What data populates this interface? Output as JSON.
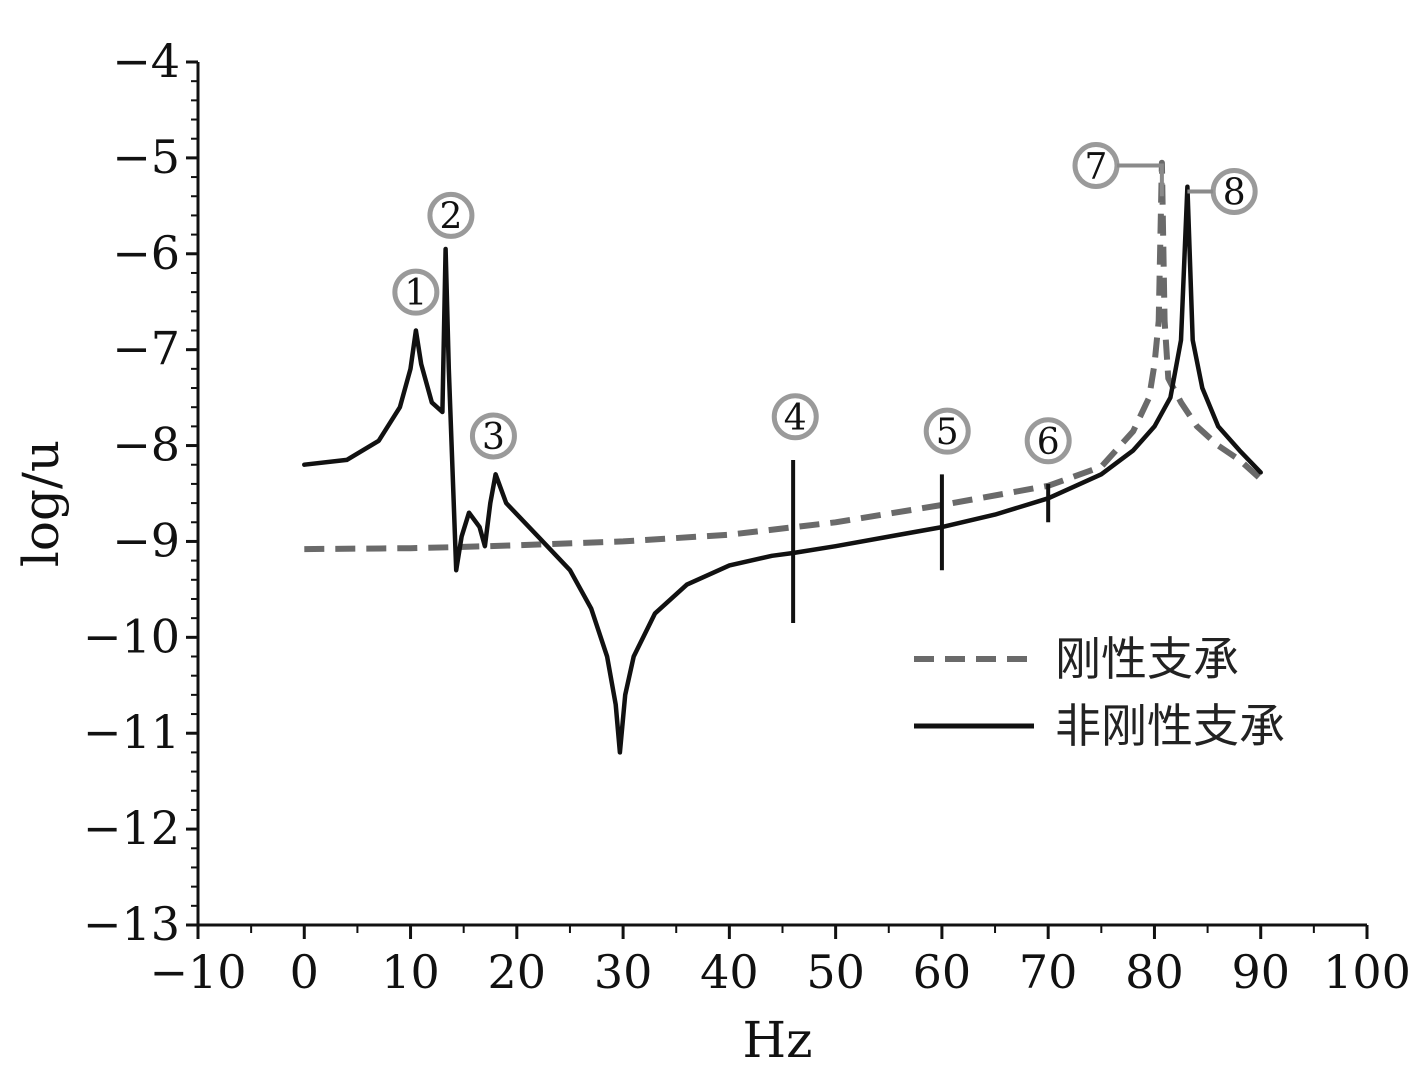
{
  "chart_data": {
    "type": "line",
    "title": "",
    "xlabel": "Hz",
    "ylabel": "log/u",
    "xlim": [
      -10,
      100
    ],
    "ylim": [
      -13,
      -4
    ],
    "xticks": [
      -10,
      0,
      10,
      20,
      30,
      40,
      50,
      60,
      70,
      80,
      90,
      100
    ],
    "xtick_labels": [
      "−10",
      "0",
      "10",
      "20",
      "30",
      "40",
      "50",
      "60",
      "70",
      "80",
      "90",
      "100"
    ],
    "yticks": [
      -4,
      -5,
      -6,
      -7,
      -8,
      -9,
      -10,
      -11,
      -12,
      -13
    ],
    "ytick_labels": [
      "−4",
      "−5",
      "−6",
      "−7",
      "−8",
      "−9",
      "−10",
      "−11",
      "−12",
      "−13"
    ],
    "grid": false,
    "legend_position": "lower-right",
    "series": [
      {
        "name": "刚性支承",
        "style": "dashed",
        "color": "#6a6a6a",
        "points": [
          [
            0,
            -9.08
          ],
          [
            10,
            -9.07
          ],
          [
            14,
            -9.06
          ],
          [
            20,
            -9.04
          ],
          [
            30,
            -9.0
          ],
          [
            40,
            -8.93
          ],
          [
            50,
            -8.8
          ],
          [
            60,
            -8.62
          ],
          [
            70,
            -8.42
          ],
          [
            75,
            -8.22
          ],
          [
            78,
            -7.85
          ],
          [
            79.5,
            -7.5
          ],
          [
            80,
            -7.15
          ],
          [
            80.4,
            -6.7
          ],
          [
            80.7,
            -5.05
          ],
          [
            80.95,
            -6.7
          ],
          [
            81.3,
            -7.3
          ],
          [
            82.5,
            -7.55
          ],
          [
            84,
            -7.8
          ],
          [
            86,
            -8.0
          ],
          [
            88,
            -8.15
          ],
          [
            90,
            -8.35
          ]
        ]
      },
      {
        "name": "非刚性支承",
        "style": "solid",
        "color": "#111111",
        "points": [
          [
            0,
            -8.2
          ],
          [
            4,
            -8.15
          ],
          [
            7,
            -7.95
          ],
          [
            9,
            -7.6
          ],
          [
            10,
            -7.2
          ],
          [
            10.5,
            -6.8
          ],
          [
            11,
            -7.15
          ],
          [
            12,
            -7.55
          ],
          [
            13,
            -7.65
          ],
          [
            13.3,
            -5.95
          ],
          [
            13.6,
            -7.2
          ],
          [
            14.3,
            -9.3
          ],
          [
            14.8,
            -8.95
          ],
          [
            15.5,
            -8.7
          ],
          [
            16.5,
            -8.85
          ],
          [
            17,
            -9.05
          ],
          [
            17.5,
            -8.6
          ],
          [
            18,
            -8.3
          ],
          [
            19,
            -8.6
          ],
          [
            22,
            -8.95
          ],
          [
            25,
            -9.3
          ],
          [
            27,
            -9.7
          ],
          [
            28.5,
            -10.2
          ],
          [
            29.3,
            -10.7
          ],
          [
            29.7,
            -11.2
          ],
          [
            30.2,
            -10.6
          ],
          [
            31,
            -10.2
          ],
          [
            33,
            -9.75
          ],
          [
            36,
            -9.45
          ],
          [
            40,
            -9.25
          ],
          [
            44,
            -9.15
          ],
          [
            46,
            -9.12
          ],
          [
            50,
            -9.05
          ],
          [
            55,
            -8.95
          ],
          [
            60,
            -8.85
          ],
          [
            65,
            -8.72
          ],
          [
            70,
            -8.55
          ],
          [
            75,
            -8.3
          ],
          [
            78,
            -8.05
          ],
          [
            80,
            -7.8
          ],
          [
            81.5,
            -7.5
          ],
          [
            82.5,
            -6.9
          ],
          [
            83.1,
            -5.3
          ],
          [
            83.6,
            -6.9
          ],
          [
            84.5,
            -7.4
          ],
          [
            86,
            -7.8
          ],
          [
            88,
            -8.05
          ],
          [
            90,
            -8.28
          ]
        ]
      }
    ],
    "spikes": [
      {
        "x": 46,
        "from": -9.85,
        "to": -8.15
      },
      {
        "x": 60,
        "from": -9.3,
        "to": -8.3
      },
      {
        "x": 70,
        "from": -8.8,
        "to": -8.4
      }
    ],
    "annotations": [
      {
        "label": "1",
        "x": 10.5,
        "y": -6.4
      },
      {
        "label": "2",
        "x": 13.8,
        "y": -5.6
      },
      {
        "label": "3",
        "x": 17.8,
        "y": -7.9
      },
      {
        "label": "4",
        "x": 46.2,
        "y": -7.7
      },
      {
        "label": "5",
        "x": 60.5,
        "y": -7.85
      },
      {
        "label": "6",
        "x": 70,
        "y": -7.95
      },
      {
        "label": "7",
        "x": 74.5,
        "y": -5.08
      },
      {
        "label": "8",
        "x": 87.5,
        "y": -5.35
      }
    ]
  }
}
